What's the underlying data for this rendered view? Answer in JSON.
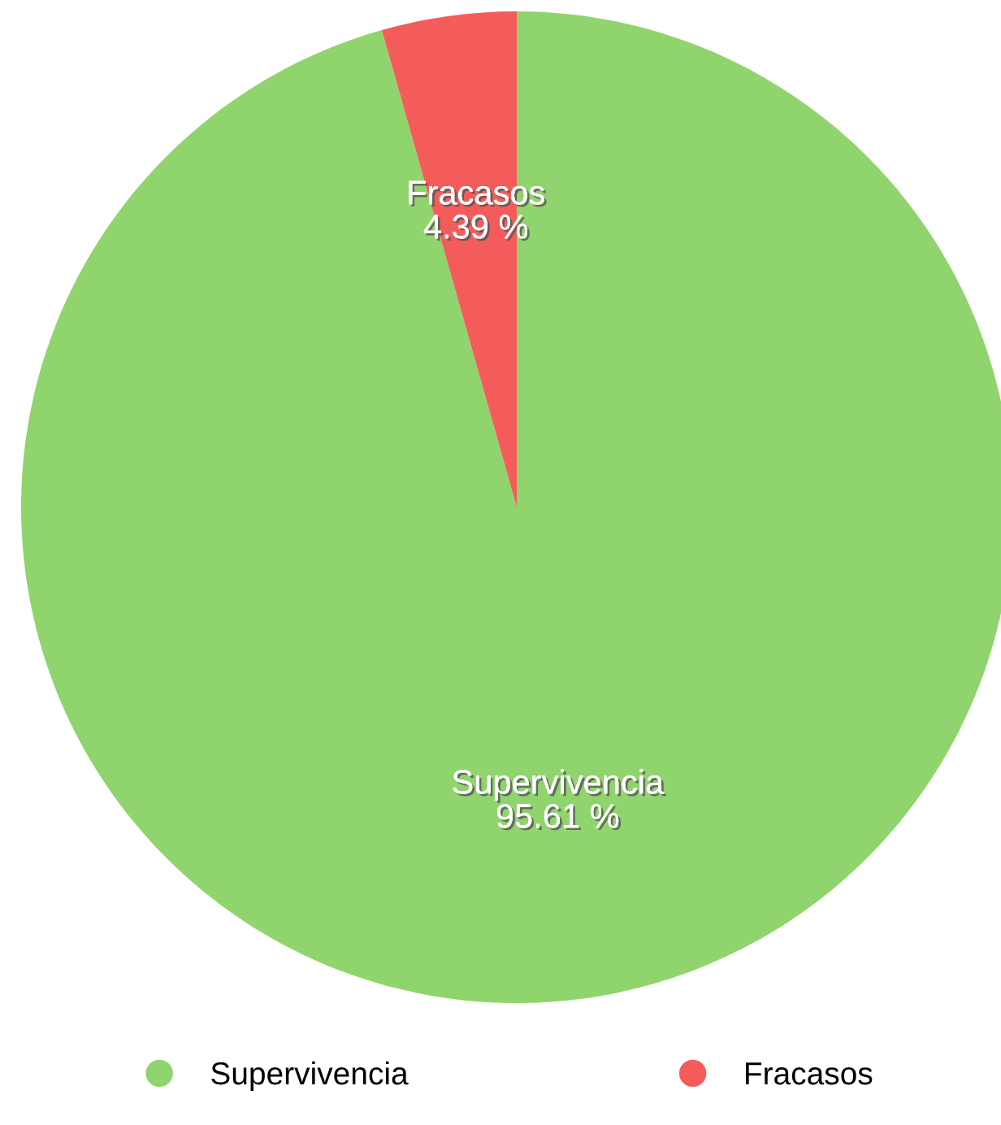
{
  "chart_data": {
    "type": "pie",
    "categories": [
      "Supervivencia",
      "Fracasos"
    ],
    "values": [
      95.61,
      4.39
    ],
    "value_labels": [
      "95.61 %",
      "4.39 %"
    ],
    "colors": [
      "#8fd46c",
      "#f45c5c"
    ],
    "legend": "bottom"
  }
}
